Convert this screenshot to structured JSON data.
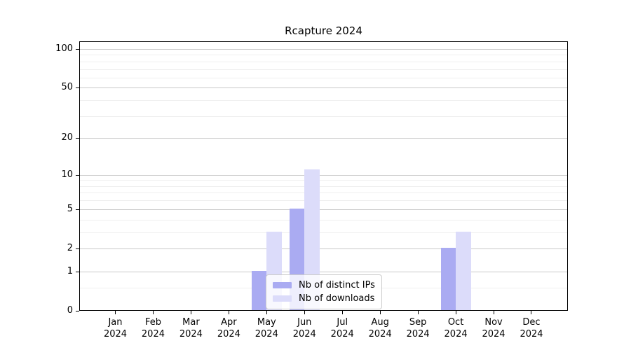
{
  "chart_data": {
    "type": "bar",
    "title": "Rcapture 2024",
    "x_ticks": [
      {
        "line1": "Jan",
        "line2": "2024"
      },
      {
        "line1": "Feb",
        "line2": "2024"
      },
      {
        "line1": "Mar",
        "line2": "2024"
      },
      {
        "line1": "Apr",
        "line2": "2024"
      },
      {
        "line1": "May",
        "line2": "2024"
      },
      {
        "line1": "Jun",
        "line2": "2024"
      },
      {
        "line1": "Jul",
        "line2": "2024"
      },
      {
        "line1": "Aug",
        "line2": "2024"
      },
      {
        "line1": "Sep",
        "line2": "2024"
      },
      {
        "line1": "Oct",
        "line2": "2024"
      },
      {
        "line1": "Nov",
        "line2": "2024"
      },
      {
        "line1": "Dec",
        "line2": "2024"
      }
    ],
    "series": [
      {
        "name": "Nb of distinct IPs",
        "key": "distinct-ips",
        "color": "#aaabf2",
        "values": [
          0,
          0,
          0,
          0,
          1,
          5,
          0,
          0,
          0,
          2,
          0,
          0
        ]
      },
      {
        "name": "Nb of downloads",
        "key": "downloads",
        "color": "#dcdcfa",
        "values": [
          0,
          0,
          0,
          0,
          3,
          11,
          0,
          0,
          0,
          3,
          0,
          0
        ]
      }
    ],
    "y_scale": "log1p",
    "y_major_ticks": [
      0,
      1,
      2,
      5,
      10,
      20,
      50,
      100
    ],
    "y_minor_gridlines": [
      0.5,
      3,
      4,
      6,
      7,
      8,
      9,
      30,
      40,
      60,
      70,
      80,
      90
    ],
    "ylim": [
      0,
      115
    ],
    "grid": "on",
    "legend_position": "lower center"
  }
}
